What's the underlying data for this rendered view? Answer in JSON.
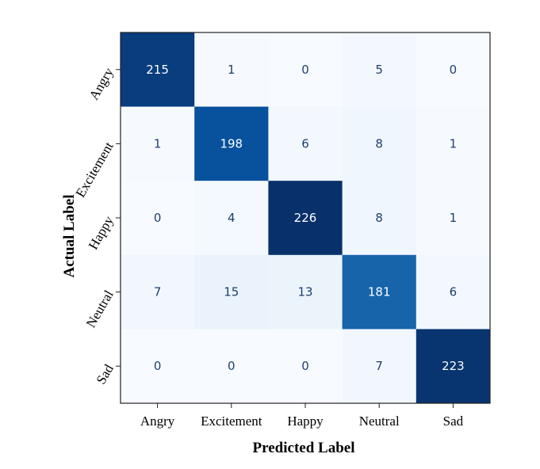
{
  "chart_data": {
    "type": "heatmap",
    "title": "",
    "xlabel": "Predicted Label",
    "ylabel": "Actual Label",
    "x_categories": [
      "Angry",
      "Excitement",
      "Happy",
      "Neutral",
      "Sad"
    ],
    "y_categories": [
      "Angry",
      "Excitement",
      "Happy",
      "Neutral",
      "Sad"
    ],
    "values": [
      [
        215,
        1,
        0,
        5,
        0
      ],
      [
        1,
        198,
        6,
        8,
        1
      ],
      [
        0,
        4,
        226,
        8,
        1
      ],
      [
        7,
        15,
        13,
        181,
        6
      ],
      [
        0,
        0,
        0,
        7,
        223
      ]
    ],
    "colormap": "Blues",
    "color_range": [
      0,
      226
    ],
    "text_dark": "#1f3f6f",
    "text_light": "#ffffff",
    "grid": false,
    "legend": "none"
  }
}
